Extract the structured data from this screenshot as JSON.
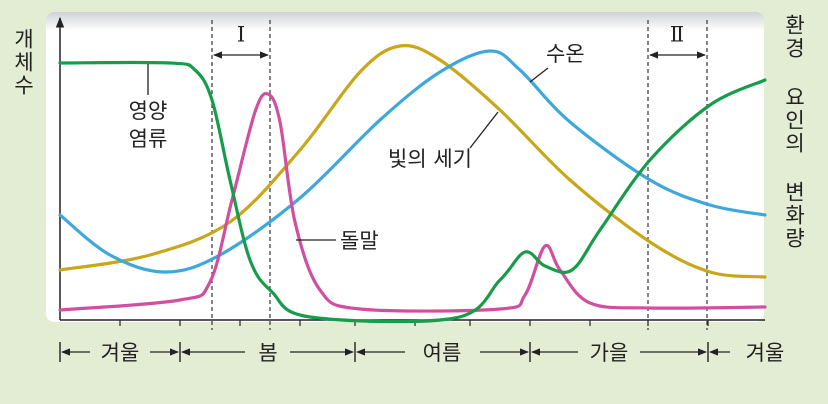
{
  "axis_left": "개체수",
  "axis_right": "환경 요인의 변화량",
  "curves": {
    "nutrients": [
      "영양",
      "염류"
    ],
    "diatom": "돌말",
    "light": "빛의 세기",
    "temperature": "수온"
  },
  "periods": [
    "Ⅰ",
    "Ⅱ"
  ],
  "seasons": [
    "겨울",
    "봄",
    "여름",
    "가을",
    "겨울"
  ]
}
